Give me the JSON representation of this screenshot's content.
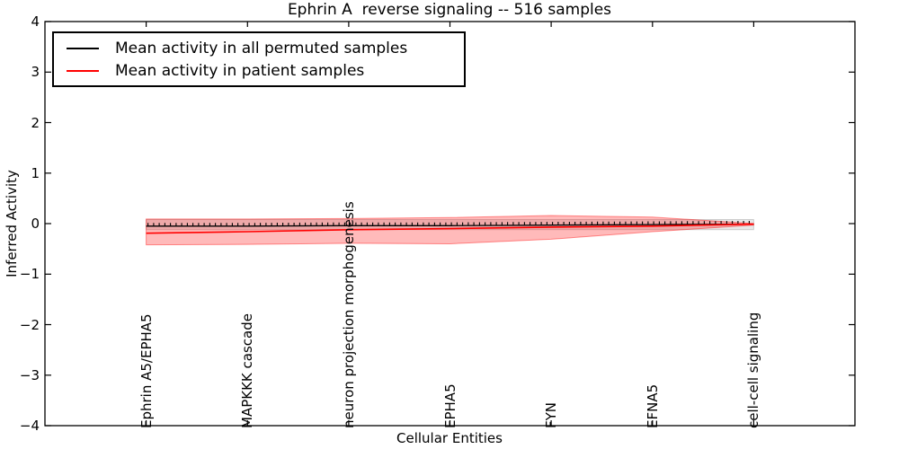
{
  "title": "Ephrin A  reverse signaling -- 516 samples",
  "legend": {
    "items": [
      {
        "label": "Mean activity in all permuted samples",
        "color": "#000000"
      },
      {
        "label": "Mean activity in patient samples",
        "color": "#ff0000"
      }
    ]
  },
  "chart_data": {
    "type": "line",
    "title": "Ephrin A  reverse signaling -- 516 samples",
    "xlabel": "Cellular Entities",
    "ylabel": "Inferred Activity",
    "categories": [
      "Ephrin A5/EPHA5",
      "MAPKKK cascade",
      "neuron projection morphogenesis",
      "EPHA5",
      "FYN",
      "EFNA5",
      "cell-cell signaling"
    ],
    "ylim": [
      -4,
      4
    ],
    "yticks": [
      4,
      3,
      2,
      1,
      0,
      -1,
      -2,
      -3,
      -4
    ],
    "grid": false,
    "legend_position": "upper left",
    "series": [
      {
        "name": "Mean activity in all permuted samples",
        "color": "#000000",
        "marker": "tick",
        "values": [
          -0.05,
          -0.05,
          -0.04,
          -0.04,
          -0.03,
          -0.02,
          -0.01
        ]
      },
      {
        "name": "Mean activity in patient samples",
        "color": "#ff0000",
        "marker": "none",
        "values": [
          -0.19,
          -0.16,
          -0.12,
          -0.1,
          -0.07,
          -0.05,
          -0.01
        ]
      }
    ],
    "bands": [
      {
        "name": "permuted samples std band",
        "color": "#000000",
        "opacity": 0.09,
        "edge_opacity": 0.16,
        "upper": [
          0.08,
          0.08,
          0.08,
          0.08,
          0.08,
          0.08,
          0.08
        ],
        "lower": [
          -0.12,
          -0.12,
          -0.12,
          -0.12,
          -0.12,
          -0.12,
          -0.12
        ]
      },
      {
        "name": "patient samples std band",
        "color": "#ff0000",
        "opacity": 0.27,
        "edge_opacity": 0.42,
        "upper": [
          0.09,
          0.09,
          0.1,
          0.12,
          0.16,
          0.13,
          0.0
        ],
        "lower": [
          -0.42,
          -0.41,
          -0.39,
          -0.4,
          -0.31,
          -0.16,
          -0.03
        ]
      }
    ]
  }
}
